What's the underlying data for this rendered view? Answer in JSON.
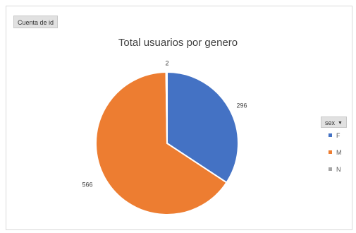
{
  "field_button": {
    "label": "Cuenta de id"
  },
  "legend": {
    "filter_label": "sex",
    "dropdown_icon": "chevron-down-icon"
  },
  "chart_data": {
    "type": "pie",
    "title": "Total usuarios por genero",
    "categories": [
      "F",
      "M",
      "N"
    ],
    "values": [
      296,
      566,
      2
    ],
    "data_labels": [
      "296",
      "566",
      "2"
    ],
    "colors": [
      "#4472C4",
      "#ED7D31",
      "#A5A5A5"
    ],
    "legend_position": "right",
    "start_angle_deg": 0
  }
}
